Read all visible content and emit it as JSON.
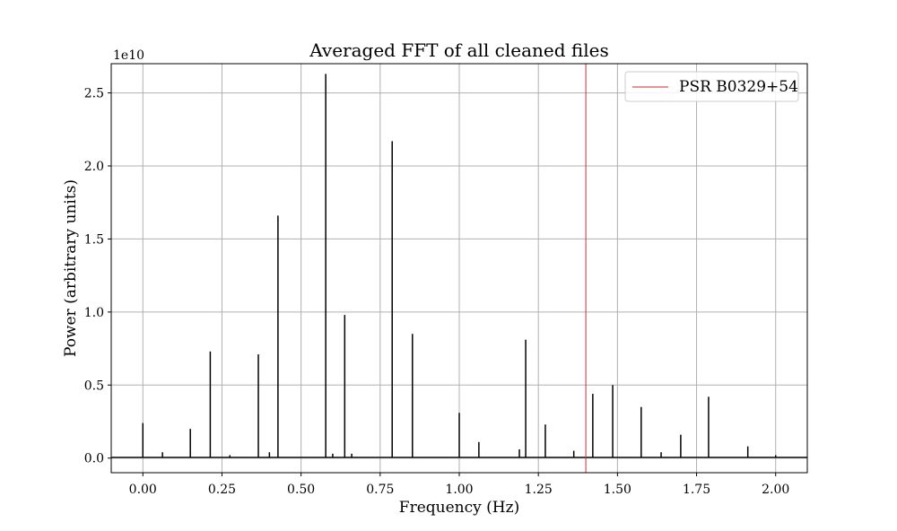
{
  "chart_data": {
    "type": "line",
    "title": "Averaged FFT of all cleaned files",
    "xlabel": "Frequency (Hz)",
    "ylabel": "Power (arbitrary units)",
    "y_offset_label": "1e10",
    "xlim": [
      -0.1,
      2.1
    ],
    "ylim": [
      -0.1,
      2.7
    ],
    "grid": true,
    "legend_position": "top-right",
    "x_ticks": [
      0.0,
      0.25,
      0.5,
      0.75,
      1.0,
      1.25,
      1.5,
      1.75,
      2.0
    ],
    "x_tick_labels": [
      "0.00",
      "0.25",
      "0.50",
      "0.75",
      "1.00",
      "1.25",
      "1.50",
      "1.75",
      "2.00"
    ],
    "y_ticks": [
      0.0,
      0.5,
      1.0,
      1.5,
      2.0,
      2.5
    ],
    "y_tick_labels": [
      "0.0",
      "0.5",
      "1.0",
      "1.5",
      "2.0",
      "2.5"
    ],
    "series": [
      {
        "color": "#000000",
        "baseline": 0.005,
        "peaks": [
          {
            "x": 0.0,
            "y": 0.24
          },
          {
            "x": 0.062,
            "y": 0.04
          },
          {
            "x": 0.15,
            "y": 0.2
          },
          {
            "x": 0.213,
            "y": 0.73
          },
          {
            "x": 0.275,
            "y": 0.02
          },
          {
            "x": 0.365,
            "y": 0.71
          },
          {
            "x": 0.4,
            "y": 0.04
          },
          {
            "x": 0.427,
            "y": 1.66
          },
          {
            "x": 0.578,
            "y": 2.63
          },
          {
            "x": 0.6,
            "y": 0.03
          },
          {
            "x": 0.638,
            "y": 0.98
          },
          {
            "x": 0.66,
            "y": 0.03
          },
          {
            "x": 0.788,
            "y": 2.17
          },
          {
            "x": 0.852,
            "y": 0.85
          },
          {
            "x": 1.0,
            "y": 0.31
          },
          {
            "x": 1.062,
            "y": 0.11
          },
          {
            "x": 1.19,
            "y": 0.06
          },
          {
            "x": 1.21,
            "y": 0.81
          },
          {
            "x": 1.272,
            "y": 0.23
          },
          {
            "x": 1.362,
            "y": 0.05
          },
          {
            "x": 1.422,
            "y": 0.44
          },
          {
            "x": 1.485,
            "y": 0.5
          },
          {
            "x": 1.575,
            "y": 0.35
          },
          {
            "x": 1.638,
            "y": 0.04
          },
          {
            "x": 1.7,
            "y": 0.16
          },
          {
            "x": 1.788,
            "y": 0.42
          },
          {
            "x": 1.912,
            "y": 0.08
          },
          {
            "x": 2.0,
            "y": 0.02
          }
        ]
      },
      {
        "name": "PSR B0329+54",
        "color": "#d62728",
        "vline_x": 1.4
      }
    ]
  }
}
